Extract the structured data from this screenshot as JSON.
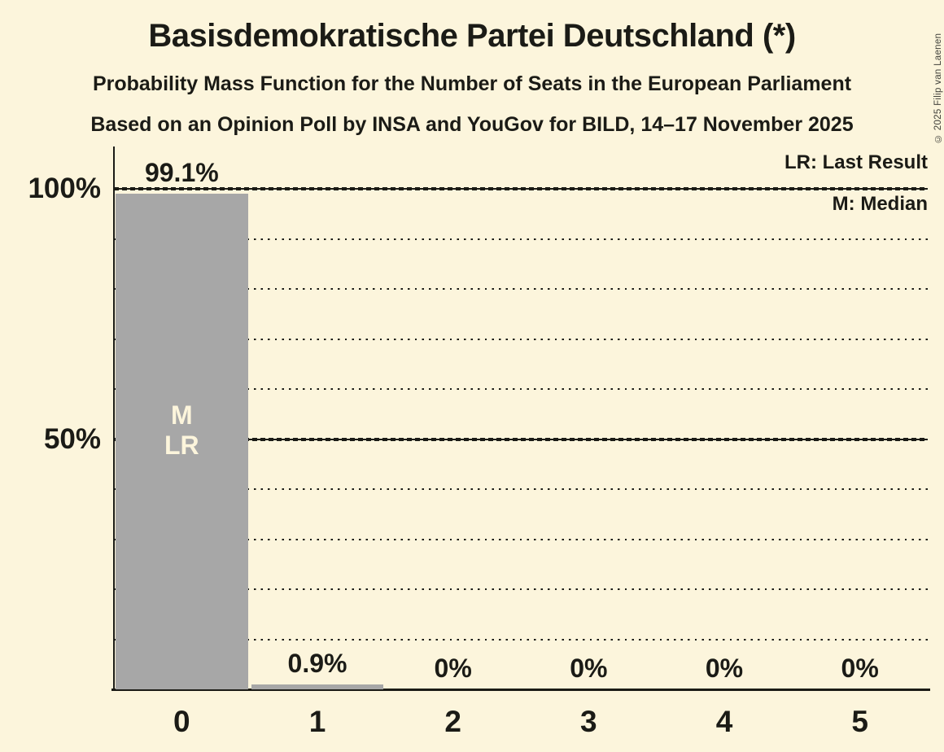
{
  "header": {
    "title": "Basisdemokratische Partei Deutschland (*)",
    "subtitle": "Probability Mass Function for the Number of Seats in the European Parliament",
    "poll_line": "Based on an Opinion Poll by INSA and YouGov for BILD, 14–17 November 2025"
  },
  "legend": {
    "last_result": "LR: Last Result",
    "median": "M: Median"
  },
  "copyright": "© 2025 Filip van Laenen",
  "colors": {
    "background": "#fcf5dc",
    "bar": "#a7a7a7",
    "ink": "#1b1b16",
    "bar_annotation_text": "#fcf5dc"
  },
  "chart_data": {
    "type": "bar",
    "title": "Probability Mass Function for the Number of Seats in the European Parliament",
    "categories": [
      "0",
      "1",
      "2",
      "3",
      "4",
      "5"
    ],
    "values": [
      99.1,
      0.9,
      0,
      0,
      0,
      0
    ],
    "value_labels": [
      "99.1%",
      "0.9%",
      "0%",
      "0%",
      "0%",
      "0%"
    ],
    "bar_annotations": {
      "0": [
        "M",
        "LR"
      ]
    },
    "annotation_center_pct": 48.3,
    "y_ticks": [
      {
        "value": 100,
        "label": "100%"
      },
      {
        "value": 50,
        "label": "50%"
      }
    ],
    "ylim": [
      0,
      100
    ],
    "major_gridlines": [
      100,
      50
    ],
    "minor_gridlines": [
      90,
      80,
      70,
      60,
      40,
      30,
      20,
      10
    ],
    "grid": "horizontal-dotted",
    "legend_position": "top-right",
    "xlabel": "",
    "ylabel": ""
  }
}
